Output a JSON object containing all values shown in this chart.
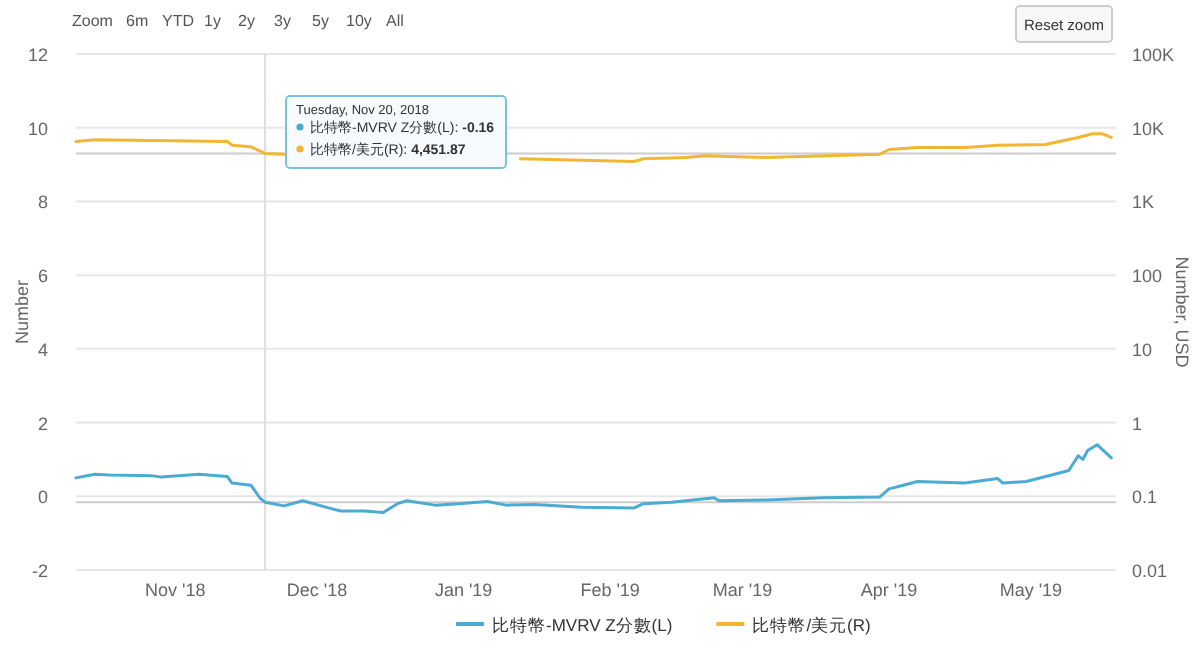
{
  "chart_data": {
    "type": "line",
    "ylabel": "Number",
    "y2label": "Number, USD",
    "log": "y2",
    "grid": "y",
    "legend": "bottom",
    "xlim": [
      "2018-10-11",
      "2019-05-19"
    ],
    "xticks": [
      {
        "value": "2018-11-01",
        "label": "Nov '18"
      },
      {
        "value": "2018-12-01",
        "label": "Dec '18"
      },
      {
        "value": "2019-01-01",
        "label": "Jan '19"
      },
      {
        "value": "2019-02-01",
        "label": "Feb '19"
      },
      {
        "value": "2019-03-01",
        "label": "Mar '19"
      },
      {
        "value": "2019-04-01",
        "label": "Apr '19"
      },
      {
        "value": "2019-05-01",
        "label": "May '19"
      }
    ],
    "ylim": [
      -2,
      12
    ],
    "yticks": [
      -2,
      0,
      2,
      4,
      6,
      8,
      10,
      12
    ],
    "y2lim": [
      0.01,
      100000
    ],
    "y2ticks": [
      0.01,
      0.1,
      1,
      10,
      100,
      {
        "value": 1000,
        "label": "1K"
      },
      {
        "value": 10000,
        "label": "10K"
      },
      {
        "value": 100000,
        "label": "100K"
      }
    ],
    "series": [
      {
        "name": "比特幣-MVRV Z分數(L)",
        "color": "#4bacd3",
        "x": [
          "2018-10-11",
          "2018-10-15",
          "2018-10-18",
          "2018-10-27",
          "2018-10-29",
          "2018-11-06",
          "2018-11-12",
          "2018-11-13",
          "2018-11-17",
          "2018-11-19",
          "2018-11-20",
          "2018-11-24",
          "2018-11-28",
          "2018-12-03",
          "2018-12-06",
          "2018-12-11",
          "2018-12-15",
          "2018-12-18",
          "2018-12-20",
          "2018-12-26",
          "2018-12-31",
          "2019-01-06",
          "2019-01-10",
          "2019-01-16",
          "2019-01-26",
          "2019-02-06",
          "2019-02-08",
          "2019-02-14",
          "2019-02-23",
          "2019-02-24",
          "2019-03-06",
          "2019-03-18",
          "2019-03-30",
          "2019-04-01",
          "2019-04-04",
          "2019-04-07",
          "2019-04-17",
          "2019-04-24",
          "2019-04-25",
          "2019-04-30",
          "2019-05-06",
          "2019-05-09",
          "2019-05-11",
          "2019-05-12",
          "2019-05-13",
          "2019-05-15",
          "2019-05-18"
        ],
        "values": [
          0.5,
          0.6,
          0.58,
          0.56,
          0.52,
          0.6,
          0.54,
          0.36,
          0.3,
          -0.06,
          -0.16,
          -0.26,
          -0.12,
          -0.3,
          -0.4,
          -0.4,
          -0.44,
          -0.2,
          -0.12,
          -0.24,
          -0.2,
          -0.14,
          -0.24,
          -0.22,
          -0.3,
          -0.32,
          -0.2,
          -0.16,
          -0.04,
          -0.12,
          -0.1,
          -0.04,
          -0.02,
          0.2,
          0.3,
          0.4,
          0.36,
          0.48,
          0.36,
          0.4,
          0.6,
          0.7,
          1.1,
          1.0,
          1.24,
          1.4,
          1.04
        ]
      },
      {
        "name": "比特幣/美元(R)",
        "color": "#f2b632",
        "axis": "y2",
        "x": [
          "2018-10-11",
          "2018-10-15",
          "2018-10-27",
          "2018-11-12",
          "2018-11-13",
          "2018-11-17",
          "2018-11-19",
          "2018-11-20",
          "2018-11-24",
          "2018-12-15",
          "2019-01-13",
          "2019-01-26",
          "2019-02-06",
          "2019-02-08",
          "2019-02-17",
          "2019-02-21",
          "2019-03-06",
          "2019-03-19",
          "2019-03-30",
          "2019-04-01",
          "2019-04-07",
          "2019-04-17",
          "2019-04-24",
          "2019-05-04",
          "2019-05-11",
          "2019-05-14",
          "2019-05-16",
          "2019-05-18"
        ],
        "values": [
          6500,
          6850,
          6700,
          6500,
          5800,
          5500,
          4800,
          4451.87,
          4370,
          null,
          3800,
          3630,
          3470,
          3800,
          3950,
          4170,
          3950,
          4170,
          4370,
          5060,
          5400,
          5400,
          5800,
          5920,
          7380,
          8300,
          8300,
          7380
        ]
      }
    ],
    "ref_lines": [
      {
        "axis": "x",
        "value": "2018-11-20",
        "color": "#dddddd"
      },
      {
        "axis": "y",
        "value": -0.16,
        "color": "#cccccc"
      },
      {
        "axis": "y2",
        "value": 4451.87,
        "color": "#cccccc"
      }
    ],
    "annotations": [
      "Tuesday, Nov 20, 2018",
      "比特幣-MVRV Z分數(L): **-0.16**",
      "比特幣/美元(R): **4,451.87**",
      "Zoom",
      "6m",
      "YTD",
      "1y",
      "2y",
      "3y",
      "5y",
      "10y",
      "All",
      "Reset zoom"
    ]
  }
}
